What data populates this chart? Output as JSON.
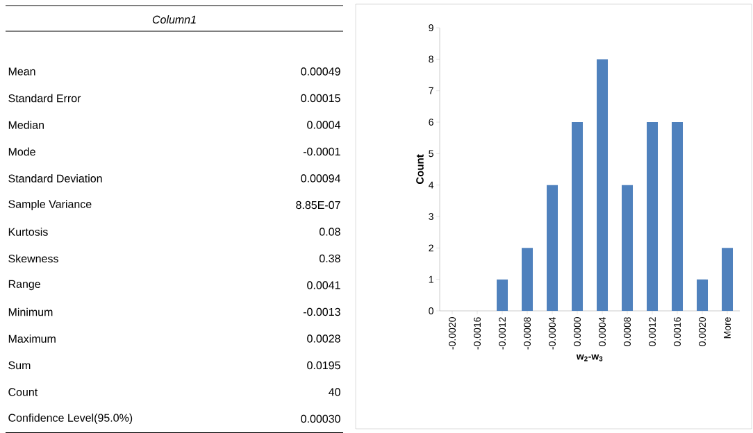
{
  "chart_data": [
    {
      "type": "other",
      "title": "Column1",
      "categories": [
        "Mean",
        "Standard Error",
        "Median",
        "Mode",
        "Standard Deviation",
        "Sample Variance",
        "Kurtosis",
        "Skewness",
        "Range",
        "Minimum",
        "Maximum",
        "Sum",
        "Count",
        "Confidence Level(95.0%)"
      ],
      "value_labels": [
        "0.00049",
        "0.00015",
        "0.0004",
        "-0.0001",
        "0.00094",
        "8.85E-07",
        "0.08",
        "0.38",
        "0.0041",
        "-0.0013",
        "0.0028",
        "0.0195",
        "40",
        "0.00030"
      ]
    },
    {
      "type": "bar",
      "xlabel": "w$_{2}$-w$_{3}$",
      "ylabel": "Count",
      "categories": [
        "-0.0020",
        "-0.0016",
        "-0.0012",
        "-0.0008",
        "-0.0004",
        "0.0000",
        "0.0004",
        "0.0008",
        "0.0012",
        "0.0016",
        "0.0020",
        "More"
      ],
      "values": [
        0,
        0,
        1,
        2,
        4,
        6,
        8,
        4,
        6,
        6,
        1,
        2
      ],
      "color": "#4f81bd",
      "ylim": [
        0,
        9
      ],
      "yticks": [
        0,
        1,
        2,
        3,
        4,
        5,
        6,
        7,
        8,
        9
      ]
    }
  ]
}
